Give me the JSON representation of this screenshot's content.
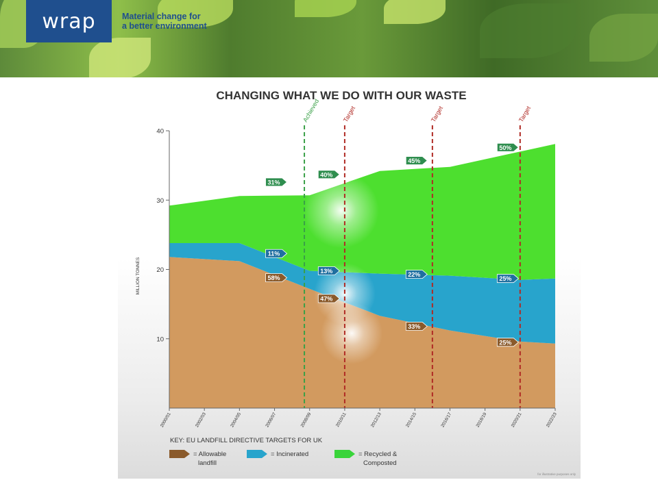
{
  "header": {
    "logo_text": "wrap",
    "tagline_line1": "Material change for",
    "tagline_line2": "a better environment",
    "brand_color": "#1f4f8e"
  },
  "chart_data": {
    "type": "area",
    "title": "CHANGING WHAT WE DO WITH OUR WASTE",
    "ylabel": "MILLION TONNES",
    "ylim": [
      0,
      40
    ],
    "yticks": [
      10,
      20,
      30,
      40
    ],
    "categories": [
      "2000/01",
      "2002/03",
      "2004/05",
      "2006/07",
      "2008/09",
      "2010/11",
      "2012/13",
      "2014/15",
      "2016/17",
      "2018/19",
      "2020/21",
      "2022/23"
    ],
    "x_positions": [
      0,
      1,
      2,
      3,
      4,
      5,
      6,
      7,
      8,
      9,
      10,
      11
    ],
    "series": [
      {
        "name": "Allowable landfill",
        "color": "#d29a5f",
        "x": [
          0,
          2,
          4,
          6,
          8,
          10,
          11
        ],
        "values": [
          21.8,
          21.2,
          17.2,
          13.3,
          11.2,
          9.6,
          9.3
        ]
      },
      {
        "name": "Incinerated",
        "color": "#28a4cc",
        "x": [
          0,
          2,
          4,
          6,
          8,
          10,
          11
        ],
        "values": [
          2.0,
          2.6,
          2.6,
          6.1,
          7.9,
          8.9,
          9.4
        ]
      },
      {
        "name": "Recycled & Composted",
        "color": "#4ddf2f",
        "x": [
          0,
          2,
          4,
          6,
          8,
          10,
          11
        ],
        "values": [
          5.4,
          6.8,
          10.9,
          14.8,
          15.7,
          18.5,
          19.4
        ]
      }
    ],
    "target_lines": [
      {
        "x": 3.85,
        "label": "Achieved",
        "color": "#3aa047"
      },
      {
        "x": 5.0,
        "label": "Target",
        "color": "#b02a24"
      },
      {
        "x": 7.5,
        "label": "Target",
        "color": "#b02a24"
      },
      {
        "x": 10.0,
        "label": "Target",
        "color": "#b02a24"
      }
    ],
    "annotations": [
      {
        "text": "31%",
        "x": 3.0,
        "y": 32.6,
        "series": "Recycled & Composted"
      },
      {
        "text": "40%",
        "x": 4.5,
        "y": 33.7,
        "series": "Recycled & Composted"
      },
      {
        "text": "45%",
        "x": 7.0,
        "y": 35.7,
        "series": "Recycled & Composted"
      },
      {
        "text": "50%",
        "x": 9.6,
        "y": 37.6,
        "series": "Recycled & Composted"
      },
      {
        "text": "11%",
        "x": 3.0,
        "y": 22.3,
        "series": "Incinerated"
      },
      {
        "text": "13%",
        "x": 4.5,
        "y": 19.8,
        "series": "Incinerated"
      },
      {
        "text": "22%",
        "x": 7.0,
        "y": 19.3,
        "series": "Incinerated"
      },
      {
        "text": "25%",
        "x": 9.6,
        "y": 18.7,
        "series": "Incinerated"
      },
      {
        "text": "58%",
        "x": 3.0,
        "y": 18.8,
        "series": "Allowable landfill"
      },
      {
        "text": "47%",
        "x": 4.5,
        "y": 15.8,
        "series": "Allowable landfill"
      },
      {
        "text": "33%",
        "x": 7.0,
        "y": 11.8,
        "series": "Allowable landfill"
      },
      {
        "text": "25%",
        "x": 9.6,
        "y": 9.5,
        "series": "Allowable landfill"
      }
    ],
    "key_title": "KEY: EU LANDFILL DIRECTIVE TARGETS FOR UK",
    "legend": [
      {
        "line1": "= Allowable",
        "line2": "landfill",
        "color": "#8a5a2b"
      },
      {
        "line1": "= Incinerated",
        "line2": "",
        "color": "#28a4cc"
      },
      {
        "line1": "= Recycled &",
        "line2": "Composted",
        "color": "#39d43a"
      }
    ],
    "footnote": "for illustrative purposes only",
    "grid": false,
    "legend_position": "bottom-left"
  }
}
